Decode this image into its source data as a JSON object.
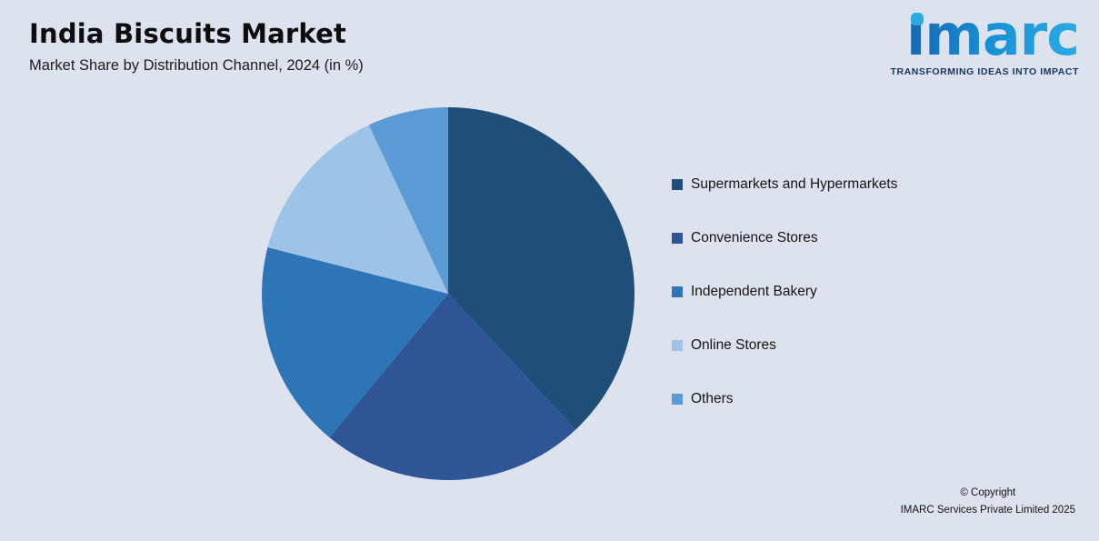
{
  "header": {
    "title": "India Biscuits Market",
    "subtitle": "Market Share by Distribution Channel, 2024 (in %)"
  },
  "logo": {
    "text": "imarc",
    "tagline": "TRANSFORMING IDEAS INTO IMPACT",
    "dot_color": "#29abe2",
    "tagline_color": "#16355f"
  },
  "footer": {
    "line1": "© Copyright",
    "line2": "IMARC Services Private Limited 2025"
  },
  "chart_data": {
    "type": "pie",
    "title": "India Biscuits Market",
    "subtitle": "Market Share by Distribution Channel, 2024 (in %)",
    "unit": "%",
    "categories": [
      "Supermarkets and Hypermarkets",
      "Convenience Stores",
      "Independent Bakery",
      "Online Stores",
      "Others"
    ],
    "values": [
      38,
      23,
      18,
      14,
      7
    ],
    "colors": [
      "#1F4E79",
      "#2F5597",
      "#2E75B6",
      "#9DC3E6",
      "#5B9BD5"
    ],
    "start_angle_deg": -90,
    "direction": "clockwise",
    "legend_position": "right",
    "data_labels_shown": false,
    "background_color": "#dce3ef"
  }
}
